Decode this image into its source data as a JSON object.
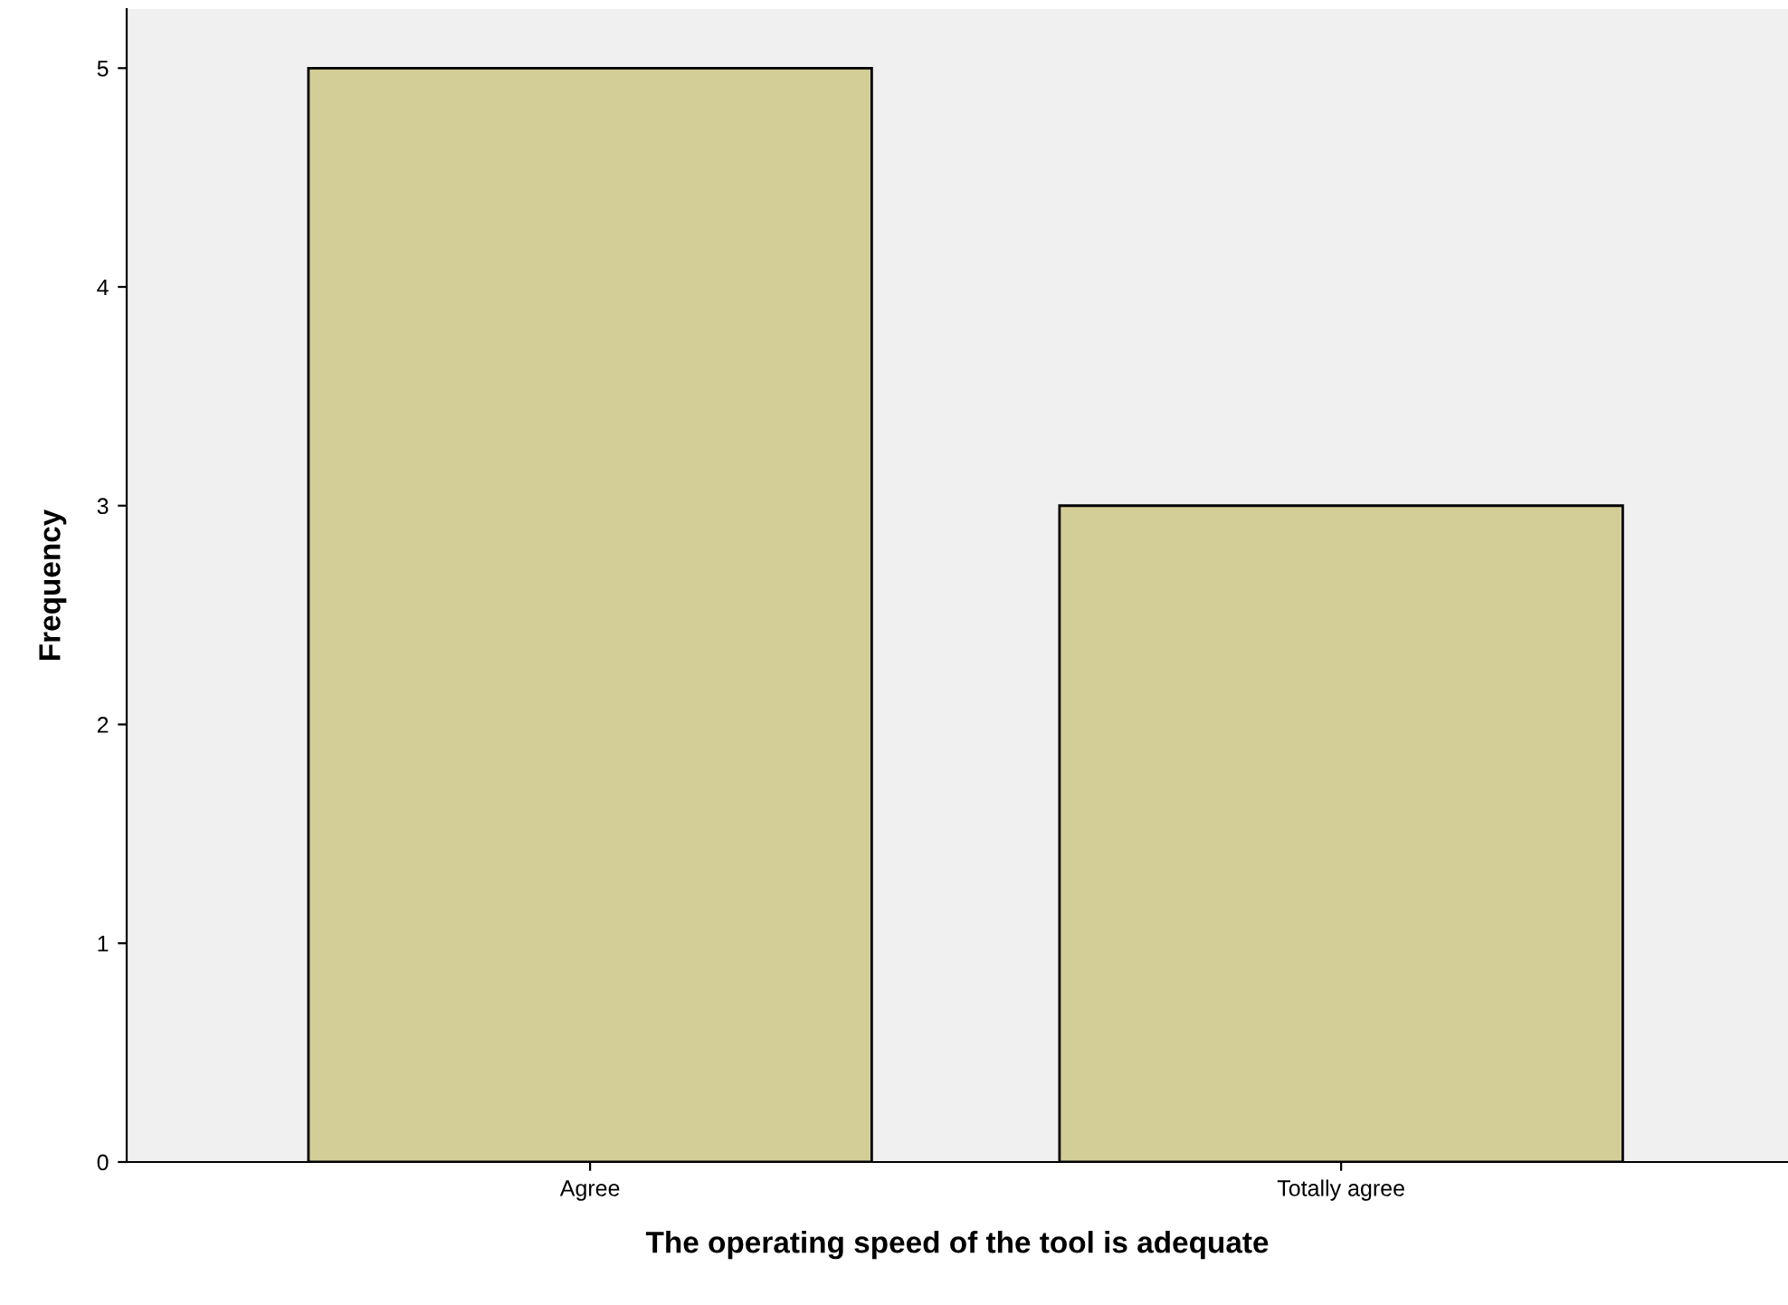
{
  "chart_data": {
    "type": "bar",
    "xlabel": "The operating speed of the tool is adequate",
    "ylabel": "Frequency",
    "categories": [
      "Agree",
      "Totally agree"
    ],
    "values": [
      5,
      3
    ],
    "color": "#d3cd97",
    "ylim": [
      0,
      5.27
    ],
    "yticks": [
      0,
      1,
      2,
      3,
      4,
      5
    ],
    "grid": false,
    "legend": false
  }
}
